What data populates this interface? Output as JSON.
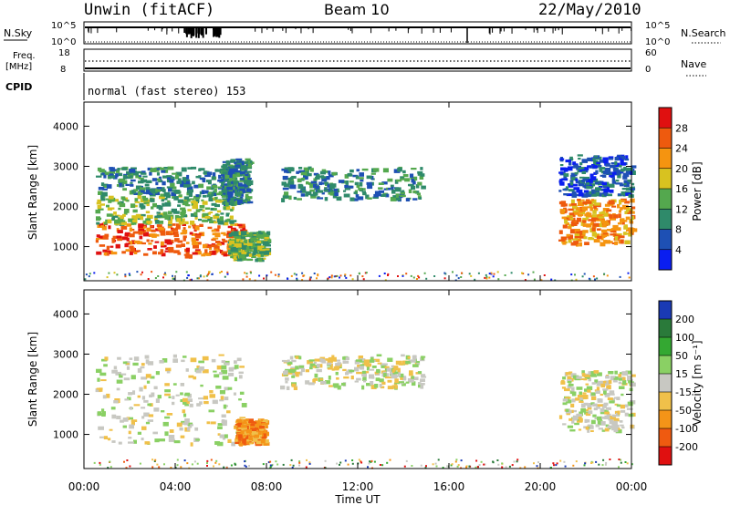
{
  "header": {
    "title": "Unwin (fitACF)",
    "beam": "Beam 10",
    "date": "22/May/2010"
  },
  "status_panels": {
    "nsky_label": "N.Sky",
    "nsearch_label": "N.Search",
    "nsky_ticks": [
      "10^5",
      "10^0"
    ],
    "nsearch_ticks": [
      "10^5",
      "10^0"
    ],
    "freq_label": "Freq.",
    "freq_unit": "[MHz]",
    "freq_ticks": [
      "18",
      "8"
    ],
    "nave_label": "Nave",
    "nave_ticks": [
      "60",
      "0"
    ],
    "cpid_label": "CPID",
    "cpid_text": "normal (fast stereo) 153"
  },
  "chart_data": [
    {
      "type": "heatmap",
      "name": "power",
      "ylabel": "Slant Range [km]",
      "yticks": [
        "1000",
        "2000",
        "3000",
        "4000"
      ],
      "ylim": [
        150,
        4600
      ],
      "colorbar_label": "Power [dB]",
      "colorbar_ticks": [
        "4",
        "8",
        "12",
        "16",
        "20",
        "24",
        "28"
      ],
      "colorbar_colors": [
        "#0a1ef0",
        "#1e50b4",
        "#2f8a6a",
        "#54a84e",
        "#d8c220",
        "#f59410",
        "#ee5a0e",
        "#e01010"
      ],
      "regions": [
        {
          "t": [
            0.5,
            7.0
          ],
          "r": [
            800,
            1600
          ],
          "level": 6
        },
        {
          "t": [
            0.5,
            6.5
          ],
          "r": [
            1600,
            2300
          ],
          "level": 3
        },
        {
          "t": [
            0.5,
            6.5
          ],
          "r": [
            2300,
            3000
          ],
          "level": 2
        },
        {
          "t": [
            6.0,
            7.2
          ],
          "r": [
            2100,
            3200
          ],
          "level": 2
        },
        {
          "t": [
            6.3,
            8.0
          ],
          "r": [
            700,
            1400
          ],
          "level": 3
        },
        {
          "t": [
            8.6,
            14.8
          ],
          "r": [
            2200,
            3000
          ],
          "level": 2
        },
        {
          "t": [
            20.8,
            24.0
          ],
          "r": [
            1100,
            2200
          ],
          "level": 5
        },
        {
          "t": [
            20.8,
            24.0
          ],
          "r": [
            2300,
            3300
          ],
          "level": 1
        }
      ]
    },
    {
      "type": "heatmap",
      "name": "velocity",
      "ylabel": "Slant Range [km]",
      "yticks": [
        "1000",
        "2000",
        "3000",
        "4000"
      ],
      "ylim": [
        150,
        4600
      ],
      "colorbar_label": "Velocity [m s⁻¹]",
      "colorbar_ticks": [
        "200",
        "100",
        "50",
        "15",
        "-15",
        "-50",
        "-100",
        "-200"
      ],
      "colorbar_colors": [
        "#1a3ab4",
        "#2a7a3a",
        "#34a832",
        "#8ad064",
        "#c8c8c2",
        "#f0c04a",
        "#f49418",
        "#ef5a10",
        "#e01010"
      ],
      "regions": [
        {
          "t": [
            0.5,
            7.0
          ],
          "r": [
            800,
            3000
          ],
          "level": 4
        },
        {
          "t": [
            6.6,
            7.9
          ],
          "r": [
            800,
            1400
          ],
          "level": 6
        },
        {
          "t": [
            8.6,
            14.8
          ],
          "r": [
            2200,
            3000
          ],
          "level": 4
        },
        {
          "t": [
            20.8,
            24.0
          ],
          "r": [
            1100,
            2600
          ],
          "level": 4
        }
      ]
    }
  ],
  "x_axis": {
    "label": "Time UT",
    "ticks": [
      "00:00",
      "04:00",
      "08:00",
      "12:00",
      "16:00",
      "20:00",
      "00:00"
    ]
  }
}
